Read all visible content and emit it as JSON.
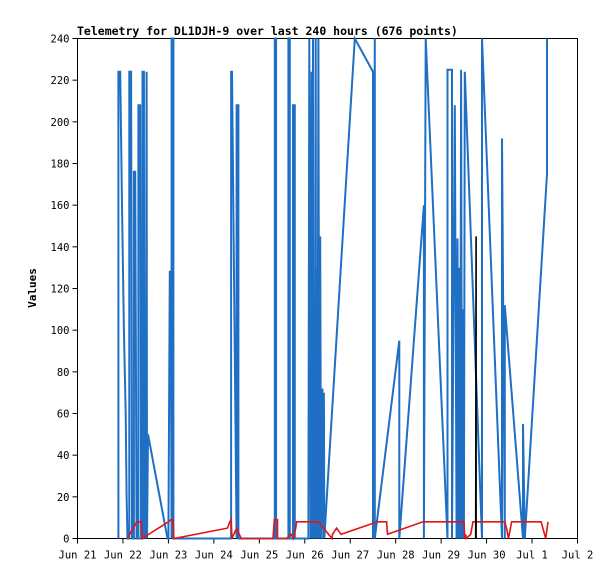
{
  "chart_data": {
    "type": "line",
    "title": "Telemetry for DL1DJH-9 over last 240 hours (676 points)",
    "ylabel": "Values",
    "xlabel": "",
    "x_ticks": [
      "Jun 21",
      "Jun 22",
      "Jun 23",
      "Jun 24",
      "Jun 25",
      "Jun 26",
      "Jun 27",
      "Jun 28",
      "Jun 29",
      "Jun 30",
      "Jul 1",
      "Jul 2"
    ],
    "y_ticks": [
      0,
      20,
      40,
      60,
      80,
      100,
      120,
      140,
      160,
      180,
      200,
      220,
      240
    ],
    "xlim": [
      0,
      11
    ],
    "ylim": [
      0,
      240
    ],
    "grid": false,
    "colors": {
      "blue": "#1f6fc4",
      "red": "#e21414",
      "black": "#000000"
    },
    "series": [
      {
        "color": "#1f6fc4",
        "x": [
          0.9,
          0.9,
          0.94,
          0.98,
          1.02,
          1.06,
          1.08,
          1.1,
          1.14,
          1.14,
          1.18,
          1.2,
          1.24,
          1.24,
          1.27,
          1.3,
          1.34,
          1.34,
          1.38,
          1.4,
          1.43,
          1.43,
          1.46,
          1.47,
          1.49,
          1.5,
          1.52,
          1.53,
          1.55,
          1.98,
          2.0,
          2.03,
          2.05,
          2.07,
          2.07,
          2.11,
          2.11,
          3.38,
          3.38,
          3.4,
          3.5,
          3.5,
          3.54,
          3.54,
          4.34,
          4.34,
          4.37,
          4.37,
          4.64,
          4.64,
          4.67,
          4.67,
          4.74,
          4.74,
          4.78,
          4.78,
          5.08,
          5.1,
          5.13,
          5.15,
          5.16,
          5.18,
          5.19,
          5.21,
          5.22,
          5.24,
          5.25,
          5.27,
          5.28,
          5.3,
          5.32,
          5.34,
          5.36,
          5.39,
          5.41,
          5.42,
          5.43,
          6.1,
          6.1,
          6.5,
          6.5,
          6.54,
          6.54,
          7.08,
          7.08,
          7.62,
          7.62,
          7.66,
          7.66,
          8.14,
          8.14,
          8.24,
          8.24,
          8.3,
          8.3,
          8.34,
          8.36,
          8.38,
          8.4,
          8.42,
          8.44,
          8.46,
          8.48,
          8.5,
          8.52,
          8.9,
          8.9,
          9.34,
          9.34,
          9.4,
          9.4,
          9.8,
          9.8,
          9.84,
          10.33,
          10.33
        ],
        "y": [
          0,
          224,
          224,
          160,
          100,
          60,
          20,
          0,
          0,
          224,
          224,
          0,
          0,
          176,
          176,
          0,
          0,
          208,
          208,
          0,
          0,
          224,
          224,
          0,
          112,
          0,
          224,
          0,
          50,
          0,
          0,
          128,
          128,
          0,
          240,
          240,
          0,
          0,
          224,
          224,
          0,
          208,
          208,
          0,
          0,
          240,
          240,
          0,
          0,
          240,
          240,
          0,
          0,
          208,
          208,
          0,
          0,
          240,
          0,
          224,
          0,
          240,
          0,
          80,
          0,
          240,
          0,
          130,
          0,
          240,
          0,
          145,
          0,
          72,
          0,
          70,
          0,
          240,
          240,
          224,
          0,
          240,
          0,
          95,
          0,
          160,
          0,
          240,
          240,
          0,
          225,
          225,
          0,
          208,
          208,
          0,
          144,
          0,
          130,
          0,
          225,
          0,
          110,
          0,
          224,
          0,
          240,
          0,
          192,
          0,
          112,
          0,
          55,
          0,
          175,
          240
        ]
      },
      {
        "color": "#e21414",
        "x": [
          1.1,
          1.3,
          1.4,
          1.42,
          2.0,
          2.05,
          2.1,
          2.12,
          3.3,
          3.35,
          3.38,
          3.4,
          3.5,
          3.52,
          3.6,
          4.3,
          4.33,
          4.4,
          4.4,
          4.6,
          4.7,
          4.75,
          4.8,
          4.82,
          5.3,
          5.6,
          5.61,
          5.7,
          5.8,
          6.6,
          6.62,
          6.8,
          6.82,
          7.6,
          7.64,
          7.7,
          7.75,
          8.1,
          8.5,
          8.52,
          8.54,
          8.55,
          8.65,
          8.7,
          8.8,
          9.4,
          9.45,
          9.48,
          9.5,
          9.55,
          9.7,
          10.2,
          10.3,
          10.35
        ],
        "y": [
          0,
          8,
          8,
          0,
          8,
          9,
          9,
          0,
          5,
          8,
          9,
          0,
          5,
          4,
          0,
          0,
          9,
          9,
          0,
          0,
          2,
          0,
          5,
          8,
          8,
          0,
          2,
          5,
          2,
          8,
          8,
          8,
          2,
          8,
          8,
          8,
          8,
          8,
          8,
          0,
          2,
          0,
          2,
          8,
          8,
          8,
          4,
          0,
          2,
          8,
          8,
          8,
          0,
          8
        ]
      },
      {
        "color": "#000000",
        "x": [
          8.76,
          8.77,
          8.77
        ],
        "y": [
          0,
          145,
          0
        ]
      }
    ]
  }
}
